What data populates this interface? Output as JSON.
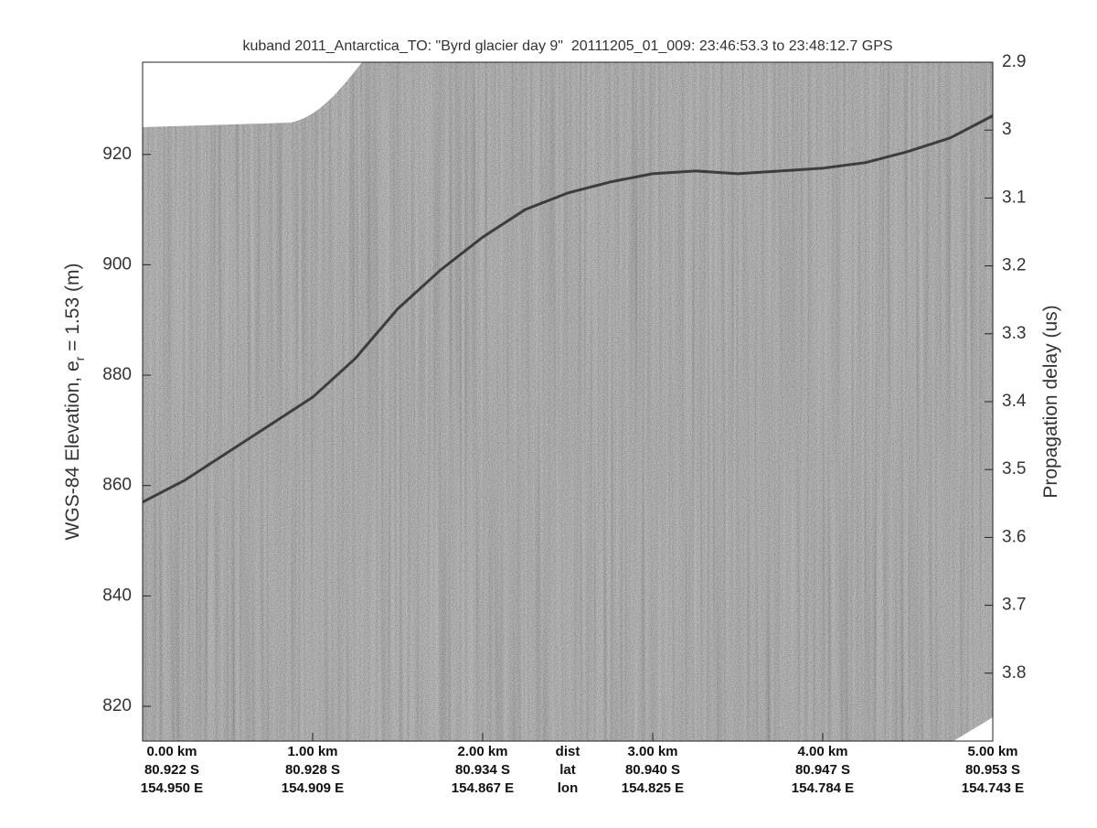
{
  "chart_data": {
    "type": "line",
    "title": "kuband 2011_Antarctica_TO: \"Byrd glacier day 9\"  20111205_01_009: 23:46:53.3 to 23:48:12.7 GPS",
    "ylabel": {
      "text": "WGS-84 Elevation, e",
      "subscript": "r",
      "suffix": " = 1.53 (m)"
    },
    "y2label": "Propagation delay (us)",
    "xlim": [
      0,
      5
    ],
    "xticks": [
      {
        "value": 0,
        "label": "0.00 km"
      },
      {
        "value": 1,
        "label": "1.00 km"
      },
      {
        "value": 2,
        "label": "2.00 km"
      },
      {
        "value": 3,
        "label": "3.00 km"
      },
      {
        "value": 4,
        "label": "4.00 km"
      },
      {
        "value": 5,
        "label": "5.00 km"
      }
    ],
    "lat_labels": [
      "80.922 S",
      "80.928 S",
      "80.934 S",
      "80.940 S",
      "80.947 S",
      "80.953 S"
    ],
    "lon_labels": [
      "154.950 E",
      "154.909 E",
      "154.867 E",
      "154.825 E",
      "154.784 E",
      "154.743 E"
    ],
    "row_labels": [
      "dist",
      "lat",
      "lon"
    ],
    "ylim": [
      813.7,
      936.7
    ],
    "yticks": [
      820,
      840,
      860,
      880,
      900,
      920
    ],
    "y2lim": [
      3.9,
      2.9
    ],
    "y2ticks": [
      2.9,
      3,
      3.1,
      3.2,
      3.3,
      3.4,
      3.5,
      3.6,
      3.7,
      3.8
    ],
    "x": [
      0,
      0.25,
      0.5,
      0.75,
      1,
      1.25,
      1.5,
      1.75,
      2,
      2.25,
      2.5,
      2.75,
      3,
      3.25,
      3.5,
      3.75,
      4,
      4.25,
      4.5,
      4.75,
      5
    ],
    "values": [
      857,
      861,
      866,
      871,
      876,
      883,
      892,
      899,
      905,
      910,
      913,
      915,
      916.5,
      917,
      916.5,
      917,
      917.5,
      918.5,
      920.5,
      923,
      927
    ],
    "color": "#2a2a2a"
  }
}
